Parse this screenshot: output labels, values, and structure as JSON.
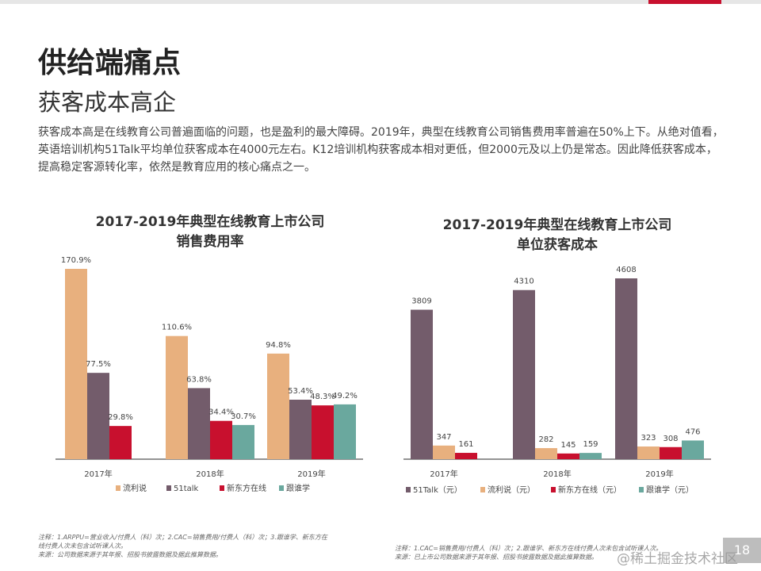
{
  "header": {
    "title": "供给端痛点",
    "subtitle": "获客成本高企"
  },
  "paragraph": "获客成本高是在线教育公司普遍面临的问题，也是盈利的最大障碍。2019年，典型在线教育公司销售费用率普遍在50%上下。从绝对值看，英语培训机构51Talk平均单位获客成本在4000元左右。K12培训机构获客成本相对更低，但2000元及以上仍是常态。因此降低获客成本，提高稳定客源转化率，依然是教育应用的核心痛点之一。",
  "colors": {
    "liulishuo": "#e8b07e",
    "talk51": "#735c6b",
    "xdf": "#c8102e",
    "gaotu": "#6aa89e",
    "accent": "#c8102e"
  },
  "chart_data": [
    {
      "type": "bar",
      "title_line1": "2017-2019年典型在线教育上市公司",
      "title_line2": "销售费用率",
      "categories": [
        "2017年",
        "2018年",
        "2019年"
      ],
      "legend_placement": "bottom",
      "grid": false,
      "series": [
        {
          "name": "流利说",
          "color": "#e8b07e",
          "values": [
            170.9,
            110.6,
            94.8
          ],
          "labels": [
            "170.9%",
            "110.6%",
            "94.8%"
          ]
        },
        {
          "name": "51talk",
          "color": "#735c6b",
          "values": [
            77.5,
            63.8,
            53.4
          ],
          "labels": [
            "77.5%",
            "63.8%",
            "53.4%"
          ]
        },
        {
          "name": "新东方在线",
          "color": "#c8102e",
          "values": [
            29.8,
            34.4,
            48.3
          ],
          "labels": [
            "29.8%",
            "34.4%",
            "48.3%"
          ]
        },
        {
          "name": "跟谁学",
          "color": "#6aa89e",
          "values": [
            null,
            30.7,
            49.2
          ],
          "labels": [
            null,
            "30.7%",
            "49.2%"
          ]
        }
      ]
    },
    {
      "type": "bar",
      "title_line1": "2017-2019年典型在线教育上市公司",
      "title_line2": "单位获客成本",
      "categories": [
        "2017年",
        "2018年",
        "2019年"
      ],
      "legend_placement": "bottom",
      "grid": false,
      "series": [
        {
          "name": "51Talk（元）",
          "color": "#735c6b",
          "values": [
            3809,
            4310,
            4608
          ],
          "labels": [
            "3809",
            "4310",
            "4608"
          ]
        },
        {
          "name": "流利说（元）",
          "color": "#e8b07e",
          "values": [
            347,
            282,
            323
          ],
          "labels": [
            "347",
            "282",
            "323"
          ]
        },
        {
          "name": "新东方在线（元）",
          "color": "#c8102e",
          "values": [
            161,
            145,
            308
          ],
          "labels": [
            "161",
            "145",
            "308"
          ]
        },
        {
          "name": "跟谁学（元）",
          "color": "#6aa89e",
          "values": [
            null,
            159,
            476
          ],
          "labels": [
            null,
            "159",
            "476"
          ]
        }
      ]
    }
  ],
  "notes": {
    "left_line1": "注释：1.ARPPU=营业收入/付费人（科）次；2.CAC=销售费用/付费人（科）次；3.跟谁学、新东方在",
    "left_line2": "线付费人次未包含试听课人次。",
    "left_line3": "来源：公司数据来源于其年报、招股书披露数据及据此推算数据。",
    "right_line1": "注释：1.CAC=销售费用/付费人（科）次；2.跟谁学、新东方在线付费人次未包含试听课人次。",
    "right_line2": "来源：已上市公司数据来源于其年报、招股书披露数据及据此推算数据。"
  },
  "page_number": "18",
  "watermark": "@稀土掘金技术社区"
}
